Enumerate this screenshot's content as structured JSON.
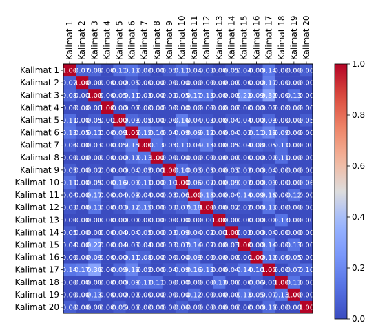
{
  "chart_data": {
    "type": "heatmap",
    "title": "",
    "xlabel": "",
    "ylabel": "",
    "labels": [
      "Kalimat 1",
      "Kalimat 2",
      "Kalimat 3",
      "Kalimat 4",
      "Kalimat 5",
      "Kalimat 6",
      "Kalimat 7",
      "Kalimat 8",
      "Kalimat 9",
      "Kalimat 10",
      "Kalimat 11",
      "Kalimat 12",
      "Kalimat 13",
      "Kalimat 14",
      "Kalimat 15",
      "Kalimat 16",
      "Kalimat 17",
      "Kalimat 18",
      "Kalimat 19",
      "Kalimat 20"
    ],
    "colormap": "coolwarm",
    "vmin": 0.0,
    "vmax": 1.0,
    "colorbar_ticks": [
      "0.0",
      "0.2",
      "0.4",
      "0.6",
      "0.8",
      "1.0"
    ],
    "matrix": [
      [
        1.0,
        0.07,
        0.08,
        0.0,
        0.11,
        0.13,
        0.06,
        0.0,
        0.05,
        0.11,
        0.04,
        0.03,
        0.0,
        0.05,
        0.04,
        0.0,
        0.14,
        0.0,
        0.0,
        0.06
      ],
      [
        0.07,
        1.0,
        0.0,
        0.0,
        0.0,
        0.05,
        0.0,
        0.0,
        0.0,
        0.0,
        0.0,
        0.0,
        0.0,
        0.0,
        0.0,
        0.0,
        0.17,
        0.0,
        0.0,
        0.0
      ],
      [
        0.08,
        0.0,
        1.0,
        0.0,
        0.05,
        0.11,
        0.03,
        0.0,
        0.02,
        0.05,
        0.17,
        0.13,
        0.0,
        0.0,
        0.22,
        0.09,
        0.3,
        0.0,
        0.13,
        0.0
      ],
      [
        0.0,
        0.0,
        0.0,
        1.0,
        0.0,
        0.0,
        0.0,
        0.0,
        0.0,
        0.0,
        0.0,
        0.0,
        0.0,
        0.0,
        0.0,
        0.0,
        0.0,
        0.0,
        0.0,
        0.0
      ],
      [
        0.11,
        0.0,
        0.05,
        0.0,
        1.0,
        0.09,
        0.05,
        0.0,
        0.0,
        0.16,
        0.04,
        0.03,
        0.0,
        0.04,
        0.04,
        0.0,
        0.09,
        0.0,
        0.0,
        0.05
      ],
      [
        0.13,
        0.05,
        0.11,
        0.0,
        0.09,
        1.0,
        0.15,
        0.1,
        0.04,
        0.09,
        0.09,
        0.12,
        0.0,
        0.04,
        0.03,
        0.11,
        0.19,
        0.09,
        0.0,
        0.0
      ],
      [
        0.06,
        0.0,
        0.03,
        0.0,
        0.05,
        0.15,
        1.0,
        0.13,
        0.05,
        0.11,
        0.04,
        0.15,
        0.0,
        0.05,
        0.04,
        0.08,
        0.05,
        0.11,
        0.0,
        0.0
      ],
      [
        0.0,
        0.0,
        0.0,
        0.0,
        0.0,
        0.1,
        0.13,
        1.0,
        0.0,
        0.0,
        0.0,
        0.0,
        0.0,
        0.0,
        0.0,
        0.0,
        0.0,
        0.11,
        0.0,
        0.0
      ],
      [
        0.05,
        0.0,
        0.02,
        0.0,
        0.0,
        0.04,
        0.05,
        0.0,
        1.0,
        0.1,
        0.03,
        0.03,
        0.0,
        0.03,
        0.03,
        0.0,
        0.04,
        0.0,
        0.0,
        0.0
      ],
      [
        0.11,
        0.0,
        0.05,
        0.0,
        0.16,
        0.09,
        0.11,
        0.0,
        0.1,
        1.0,
        0.06,
        0.07,
        0.0,
        0.09,
        0.07,
        0.0,
        0.09,
        0.0,
        0.0,
        0.06
      ],
      [
        0.04,
        0.0,
        0.17,
        0.0,
        0.04,
        0.09,
        0.04,
        0.0,
        0.03,
        0.06,
        1.0,
        0.18,
        0.0,
        0.04,
        0.14,
        0.09,
        0.16,
        0.0,
        0.12,
        0.0
      ],
      [
        0.03,
        0.0,
        0.13,
        0.0,
        0.03,
        0.12,
        0.15,
        0.0,
        0.03,
        0.07,
        0.18,
        1.0,
        0.0,
        0.02,
        0.02,
        0.0,
        0.13,
        0.0,
        0.0,
        0.0
      ],
      [
        0.0,
        0.0,
        0.0,
        0.0,
        0.0,
        0.0,
        0.0,
        0.0,
        0.0,
        0.0,
        0.0,
        0.0,
        1.0,
        0.0,
        0.0,
        0.0,
        0.0,
        0.13,
        0.0,
        0.0
      ],
      [
        0.05,
        0.0,
        0.0,
        0.0,
        0.04,
        0.04,
        0.05,
        0.0,
        0.03,
        0.09,
        0.04,
        0.02,
        0.0,
        1.0,
        0.03,
        0.0,
        0.04,
        0.0,
        0.0,
        0.0
      ],
      [
        0.04,
        0.0,
        0.22,
        0.0,
        0.04,
        0.03,
        0.04,
        0.0,
        0.03,
        0.07,
        0.14,
        0.02,
        0.0,
        0.03,
        1.0,
        0.0,
        0.14,
        0.0,
        0.13,
        0.0
      ],
      [
        0.0,
        0.0,
        0.09,
        0.0,
        0.0,
        0.11,
        0.08,
        0.0,
        0.0,
        0.0,
        0.09,
        0.0,
        0.0,
        0.0,
        0.0,
        1.0,
        0.1,
        0.06,
        0.05,
        0.0
      ],
      [
        0.14,
        0.17,
        0.3,
        0.0,
        0.09,
        0.19,
        0.05,
        0.0,
        0.04,
        0.09,
        0.16,
        0.13,
        0.0,
        0.04,
        0.14,
        0.1,
        1.0,
        0.0,
        0.07,
        0.1
      ],
      [
        0.0,
        0.0,
        0.0,
        0.0,
        0.0,
        0.09,
        0.11,
        0.11,
        0.0,
        0.0,
        0.0,
        0.0,
        0.13,
        0.0,
        0.0,
        0.06,
        0.0,
        1.0,
        0.13,
        0.0
      ],
      [
        0.0,
        0.0,
        0.13,
        0.0,
        0.0,
        0.0,
        0.0,
        0.0,
        0.0,
        0.0,
        0.12,
        0.0,
        0.0,
        0.0,
        0.13,
        0.05,
        0.07,
        0.13,
        1.0,
        0.0
      ],
      [
        0.06,
        0.0,
        0.0,
        0.0,
        0.05,
        0.0,
        0.0,
        0.0,
        0.0,
        0.06,
        0.0,
        0.0,
        0.0,
        0.0,
        0.0,
        0.0,
        0.1,
        0.0,
        0.0,
        1.0
      ]
    ]
  }
}
